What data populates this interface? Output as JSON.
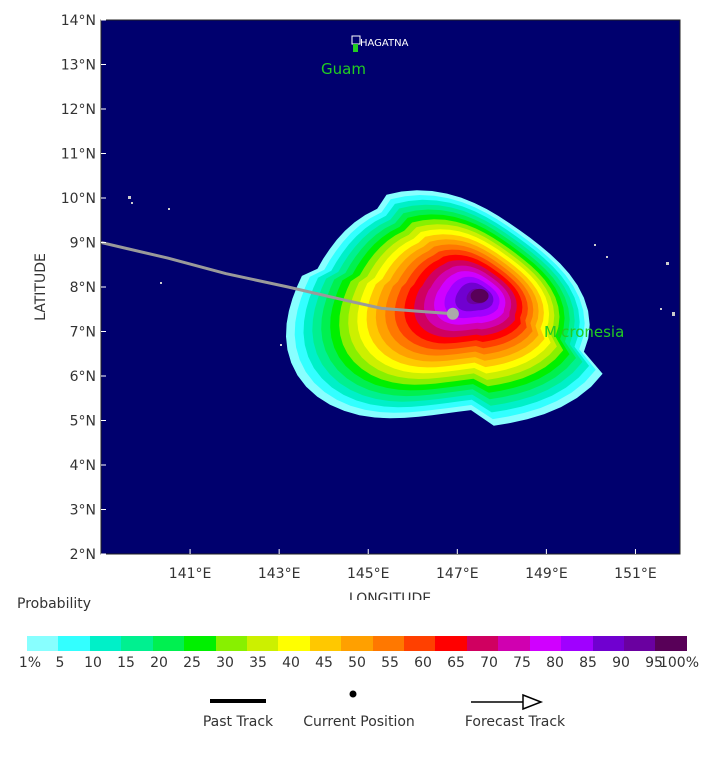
{
  "map": {
    "places": {
      "capital": "HAGATNA",
      "island": "Guam",
      "region": "Micronesia"
    },
    "x_axis": {
      "label": "LONGITUDE",
      "ticks": [
        "141°E",
        "143°E",
        "145°E",
        "147°E",
        "149°E",
        "151°E"
      ]
    },
    "y_axis": {
      "label": "LATITUDE",
      "ticks": [
        "14°N",
        "13°N",
        "12°N",
        "11°N",
        "10°N",
        "9°N",
        "8°N",
        "7°N",
        "6°N",
        "5°N",
        "4°N",
        "3°N",
        "2°N"
      ]
    },
    "extent": {
      "lon": [
        139,
        152
      ],
      "lat": [
        2,
        14
      ]
    },
    "ocean_color": "#00006e",
    "track_color": "#9a9a9a",
    "past_track": [
      [
        139.0,
        9.0
      ],
      [
        140.5,
        8.65
      ],
      [
        141.8,
        8.3
      ],
      [
        143.2,
        8.0
      ],
      [
        144.5,
        7.7
      ],
      [
        145.3,
        7.52
      ],
      [
        146.2,
        7.45
      ],
      [
        146.9,
        7.4
      ]
    ],
    "current_position": [
      146.9,
      7.4
    ],
    "probability_peak": [
      147.5,
      7.8
    ]
  },
  "legend": {
    "title": "Probability",
    "colorbar": [
      {
        "label": "1%",
        "color": "#88ffff"
      },
      {
        "label": "5",
        "color": "#33ffff"
      },
      {
        "label": "10",
        "color": "#00f0c8"
      },
      {
        "label": "15",
        "color": "#00f090"
      },
      {
        "label": "20",
        "color": "#00f050"
      },
      {
        "label": "25",
        "color": "#00f000"
      },
      {
        "label": "30",
        "color": "#88f000"
      },
      {
        "label": "35",
        "color": "#ccf000"
      },
      {
        "label": "40",
        "color": "#ffff00"
      },
      {
        "label": "45",
        "color": "#ffc800"
      },
      {
        "label": "50",
        "color": "#ffa000"
      },
      {
        "label": "55",
        "color": "#ff7800"
      },
      {
        "label": "60",
        "color": "#ff4000"
      },
      {
        "label": "65",
        "color": "#ff0000"
      },
      {
        "label": "70",
        "color": "#d00060"
      },
      {
        "label": "75",
        "color": "#d000b0"
      },
      {
        "label": "80",
        "color": "#d000ff"
      },
      {
        "label": "85",
        "color": "#a000ff"
      },
      {
        "label": "90",
        "color": "#7000d0"
      },
      {
        "label": "95",
        "color": "#6a00a0"
      },
      {
        "label": "100%",
        "color": "#580058"
      }
    ],
    "track_items": {
      "past": "Past Track",
      "current": "Current Position",
      "forecast": "Forecast Track"
    }
  }
}
